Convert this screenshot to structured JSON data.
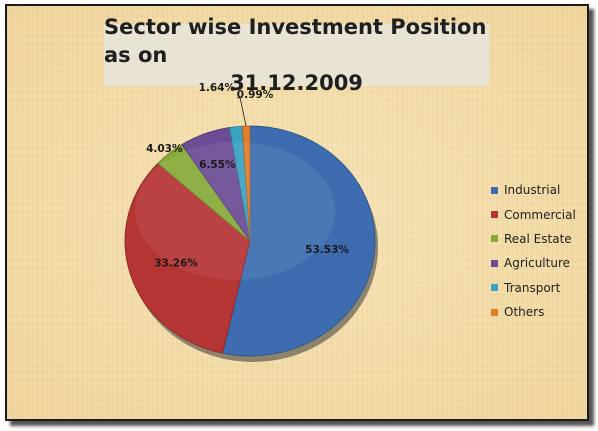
{
  "chart_data": {
    "type": "pie",
    "title_lines": [
      "Sector wise Investment Position as on",
      "31.12.2009"
    ],
    "categories": [
      "Industrial",
      "Commercial",
      "Real Estate",
      "Agriculture",
      "Transport",
      "Others"
    ],
    "values": [
      53.53,
      33.26,
      4.03,
      6.55,
      1.64,
      0.99
    ],
    "labels": [
      "53.53%",
      "33.26%",
      "4.03%",
      "6.55%",
      "1.64%",
      "0.99%"
    ],
    "colors": [
      "#3d6db0",
      "#b53434",
      "#87aa3a",
      "#6c4d95",
      "#3aa3c2",
      "#e37e2a"
    ],
    "legend_position": "right",
    "slice_order": [
      0,
      1,
      2,
      3,
      4,
      5
    ]
  }
}
